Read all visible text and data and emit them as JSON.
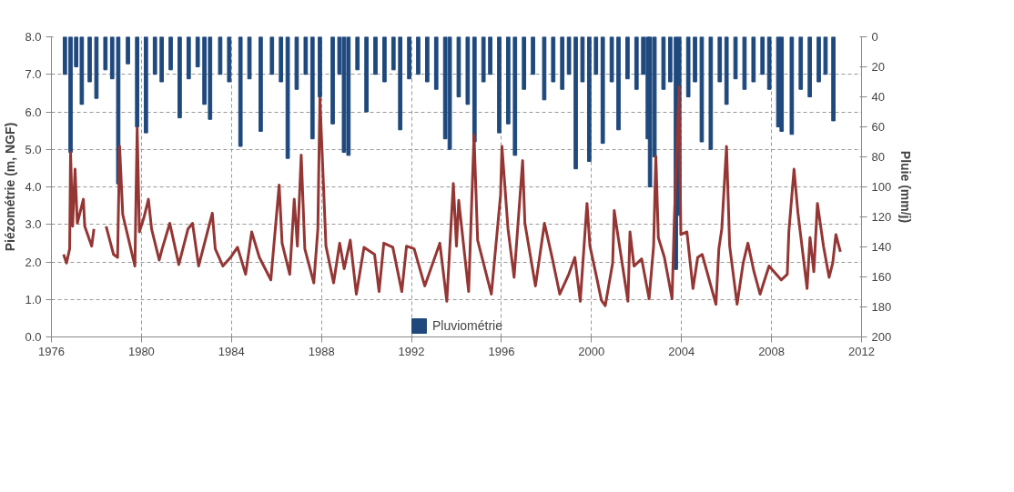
{
  "chart_data": {
    "type": "line",
    "ylabel": "Piézométrie (m, NGF)",
    "y2label": "Pluie (mm/j)",
    "xlim": [
      1976,
      2012
    ],
    "xticks": [
      1976,
      1980,
      1984,
      1988,
      1992,
      1996,
      2000,
      2004,
      2008,
      2012
    ],
    "ylim": [
      0,
      8
    ],
    "yticks": [
      {
        "value": 0,
        "label": "0.0"
      },
      {
        "value": 1,
        "label": "1.0"
      },
      {
        "value": 2,
        "label": "2.0"
      },
      {
        "value": 3,
        "label": "3.0"
      },
      {
        "value": 4,
        "label": "4.0"
      },
      {
        "value": 5,
        "label": "5.0"
      },
      {
        "value": 6,
        "label": "6.0"
      },
      {
        "value": 7,
        "label": "7.0"
      },
      {
        "value": 8,
        "label": "8.0"
      }
    ],
    "y2lim": [
      200,
      0
    ],
    "y2ticks": [
      0,
      20,
      40,
      60,
      80,
      100,
      120,
      140,
      160,
      180,
      200
    ],
    "grid": true,
    "legend": "bottom",
    "line_style": "solid",
    "marker": "none",
    "series": [
      {
        "color": "#943634",
        "x": [
          1976.54,
          1976.67,
          1976.81,
          1976.85,
          1976.94,
          1977.05,
          1977.15,
          1977.42,
          1977.48,
          1977.79,
          1977.89,
          1978.1,
          1978.43,
          1978.76,
          1978.94,
          1979.03,
          1979.17,
          1979.71,
          1979.81,
          1979.91,
          1980.11,
          1980.31,
          1980.45,
          1980.79,
          1980.92,
          1981.26,
          1981.66,
          1982.07,
          1982.27,
          1982.54,
          1983.15,
          1983.28,
          1983.62,
          1983.96,
          1984.27,
          1984.63,
          1984.9,
          1985.24,
          1985.75,
          1986.12,
          1986.25,
          1986.59,
          1986.79,
          1986.93,
          1987.1,
          1987.26,
          1987.66,
          1987.84,
          1987.93,
          1988.04,
          1988.2,
          1988.54,
          1988.81,
          1989.01,
          1989.28,
          1989.55,
          1989.89,
          1990.36,
          1990.56,
          1990.77,
          1991.17,
          1991.57,
          1991.78,
          1992.12,
          1992.59,
          1993.26,
          1993.57,
          1993.86,
          1994.0,
          1994.1,
          1994.54,
          1994.78,
          1994.94,
          1995.55,
          1995.96,
          1996.02,
          1996.29,
          1996.56,
          1996.94,
          1997.04,
          1997.51,
          1997.91,
          1998.25,
          1998.59,
          1998.99,
          1999.26,
          1999.5,
          1999.8,
          1999.93,
          2000.2,
          2000.44,
          2000.61,
          2000.94,
          2001.01,
          2001.15,
          2001.62,
          2001.71,
          2001.89,
          2002.23,
          2002.56,
          2002.76,
          2002.86,
          2002.97,
          2003.24,
          2003.58,
          2003.68,
          2003.89,
          2003.97,
          2004.24,
          2004.51,
          2004.72,
          2004.92,
          2005.53,
          2005.66,
          2005.79,
          2006.0,
          2006.14,
          2006.47,
          2006.74,
          2006.95,
          2007.22,
          2007.49,
          2007.89,
          2008.43,
          2008.7,
          2008.77,
          2009.0,
          2009.17,
          2009.58,
          2009.71,
          2009.88,
          2010.04,
          2010.31,
          2010.56,
          2010.72,
          2010.86,
          2011.06
        ],
        "values": [
          2.2,
          1.97,
          2.35,
          4.92,
          2.95,
          4.47,
          3.03,
          3.67,
          2.95,
          2.42,
          2.88,
          null,
          2.95,
          2.2,
          2.12,
          5.08,
          3.26,
          1.89,
          5.57,
          2.8,
          3.18,
          3.67,
          2.88,
          2.05,
          2.35,
          3.03,
          1.93,
          2.88,
          3.03,
          1.89,
          3.3,
          2.35,
          1.89,
          2.12,
          2.39,
          1.67,
          2.8,
          2.12,
          1.52,
          4.05,
          2.5,
          1.67,
          3.67,
          2.42,
          4.85,
          2.35,
          1.44,
          2.88,
          6.36,
          4.77,
          2.42,
          1.44,
          2.5,
          1.82,
          2.58,
          1.14,
          2.39,
          2.2,
          1.21,
          2.5,
          2.39,
          1.21,
          2.42,
          2.35,
          1.36,
          2.5,
          0.95,
          4.09,
          2.42,
          3.64,
          1.21,
          5.38,
          2.58,
          1.14,
          3.79,
          5.08,
          2.88,
          1.59,
          4.7,
          3.03,
          1.36,
          3.03,
          2.12,
          1.14,
          1.67,
          2.12,
          0.95,
          3.56,
          2.42,
          1.67,
          0.98,
          0.83,
          1.97,
          3.37,
          2.8,
          0.95,
          2.8,
          1.89,
          2.08,
          1.02,
          2.42,
          4.81,
          2.65,
          2.12,
          1.02,
          3.11,
          6.67,
          2.73,
          2.8,
          1.29,
          2.12,
          2.2,
          0.87,
          2.35,
          2.88,
          5.08,
          2.42,
          0.87,
          1.97,
          2.5,
          1.74,
          1.14,
          1.89,
          1.52,
          1.67,
          2.8,
          4.47,
          3.33,
          1.29,
          2.65,
          1.74,
          3.56,
          2.42,
          1.59,
          1.97,
          2.73,
          2.27
        ]
      },
      {
        "type": "bar",
        "name": "Pluviométrie",
        "color": "#1f497d",
        "axis": "y2",
        "x": [
          1976.6,
          1976.85,
          1977.1,
          1977.35,
          1977.7,
          1978.0,
          1978.4,
          1978.7,
          1978.97,
          1979.4,
          1979.81,
          1980.2,
          1980.6,
          1980.9,
          1981.3,
          1981.7,
          1982.1,
          1982.5,
          1982.8,
          1983.05,
          1983.5,
          1983.9,
          1984.4,
          1984.8,
          1985.3,
          1985.8,
          1986.2,
          1986.5,
          1986.9,
          1987.3,
          1987.6,
          1987.93,
          1988.5,
          1988.8,
          1989.0,
          1989.2,
          1989.6,
          1990.0,
          1990.4,
          1990.8,
          1991.2,
          1991.5,
          1991.9,
          1992.3,
          1992.7,
          1993.1,
          1993.5,
          1993.7,
          1994.1,
          1994.5,
          1994.8,
          1995.2,
          1995.5,
          1995.9,
          1996.3,
          1996.6,
          1997.0,
          1997.4,
          1997.9,
          1998.3,
          1998.7,
          1999.0,
          1999.3,
          1999.6,
          1999.9,
          2000.2,
          2000.5,
          2000.9,
          2001.2,
          2001.6,
          2002.0,
          2002.3,
          2002.5,
          2002.6,
          2002.8,
          2003.2,
          2003.5,
          2003.75,
          2003.9,
          2004.3,
          2004.6,
          2004.9,
          2005.3,
          2005.7,
          2006.0,
          2006.4,
          2006.8,
          2007.2,
          2007.6,
          2007.9,
          2008.3,
          2008.45,
          2008.9,
          2009.3,
          2009.7,
          2010.1,
          2010.4,
          2010.75
        ],
        "values": [
          25,
          77,
          20,
          45,
          30,
          41,
          22,
          28,
          98,
          18,
          60,
          64,
          25,
          30,
          22,
          54,
          28,
          20,
          45,
          55,
          25,
          30,
          73,
          28,
          63,
          25,
          30,
          81,
          35,
          25,
          68,
          40,
          58,
          25,
          77,
          79,
          22,
          50,
          25,
          30,
          22,
          62,
          28,
          25,
          30,
          35,
          68,
          75,
          40,
          45,
          70,
          30,
          25,
          64,
          58,
          79,
          35,
          25,
          42,
          30,
          35,
          25,
          88,
          30,
          83,
          25,
          71,
          30,
          62,
          28,
          35,
          25,
          68,
          100,
          80,
          35,
          30,
          155,
          119,
          40,
          30,
          70,
          75,
          30,
          45,
          28,
          35,
          30,
          25,
          35,
          60,
          63,
          65,
          35,
          40,
          30,
          25,
          56
        ]
      }
    ]
  }
}
